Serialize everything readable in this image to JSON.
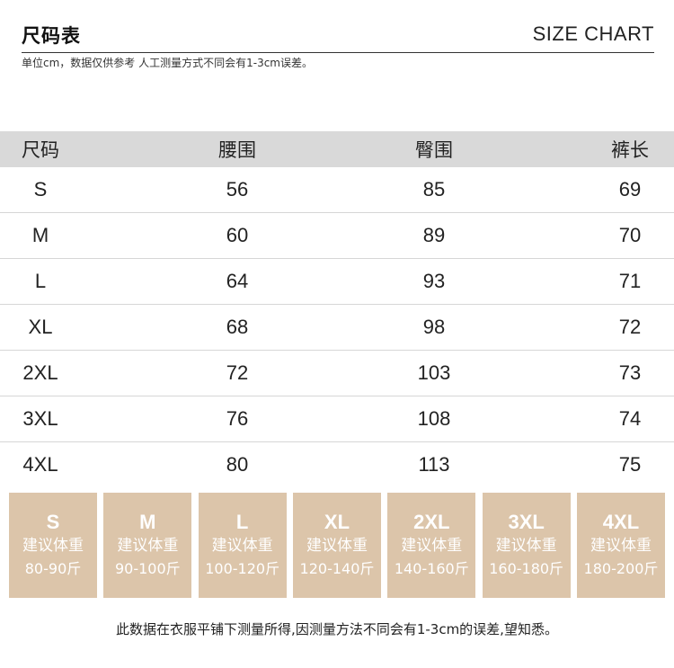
{
  "header": {
    "title": "尺码表",
    "title_en": "SIZE CHART",
    "note": "单位cm，数据仅供参考 人工测量方式不同会有1-3cm误差。"
  },
  "table": {
    "columns": [
      "尺码",
      "腰围",
      "臀围",
      "裤长"
    ],
    "rows": [
      [
        "S",
        "56",
        "85",
        "69"
      ],
      [
        "M",
        "60",
        "89",
        "70"
      ],
      [
        "L",
        "64",
        "93",
        "71"
      ],
      [
        "XL",
        "68",
        "98",
        "72"
      ],
      [
        "2XL",
        "72",
        "103",
        "73"
      ],
      [
        "3XL",
        "76",
        "108",
        "74"
      ],
      [
        "4XL",
        "80",
        "113",
        "75"
      ]
    ]
  },
  "cards": [
    {
      "size": "S",
      "label": "建议体重",
      "weight": "80-90斤"
    },
    {
      "size": "M",
      "label": "建议体重",
      "weight": "90-100斤"
    },
    {
      "size": "L",
      "label": "建议体重",
      "weight": "100-120斤"
    },
    {
      "size": "XL",
      "label": "建议体重",
      "weight": "120-140斤"
    },
    {
      "size": "2XL",
      "label": "建议体重",
      "weight": "140-160斤"
    },
    {
      "size": "3XL",
      "label": "建议体重",
      "weight": "160-180斤"
    },
    {
      "size": "4XL",
      "label": "建议体重",
      "weight": "180-200斤"
    }
  ],
  "footer": "此数据在衣服平铺下测量所得,因测量方法不同会有1-3cm的误差,望知悉。",
  "colors": {
    "card_bg": "#dcc5aa",
    "header_row_bg": "#d9d9d9"
  }
}
